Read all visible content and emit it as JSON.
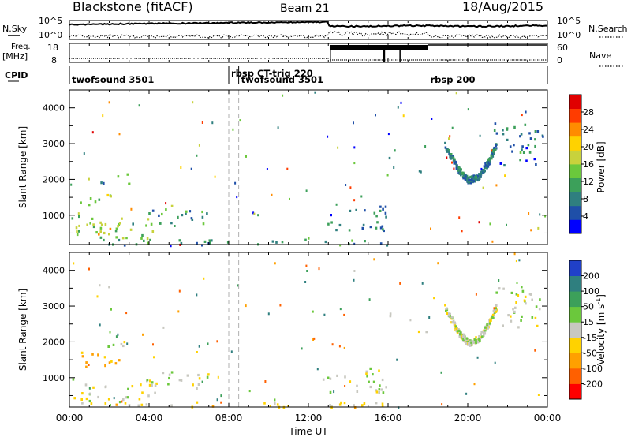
{
  "header": {
    "station": "Blackstone (fitACF)",
    "beam": "Beam 21",
    "date": "18/Aug/2015"
  },
  "noise_panel": {
    "left_label": "N.Sky",
    "right_label": "N.Search",
    "left_ticks": [
      "10^5",
      "10^0"
    ],
    "right_ticks": [
      "10^5",
      "10^0"
    ]
  },
  "freq_panel": {
    "left_label_1": "Freq.",
    "left_label_2": "[MHz]",
    "right_label": "Nave",
    "left_ticks": [
      "18",
      "8"
    ],
    "right_ticks": [
      "60",
      "0"
    ]
  },
  "cpid": {
    "label": "CPID",
    "segments": [
      {
        "name": "twofsound 3501",
        "start": 0,
        "end": 8.0
      },
      {
        "name": "rbsp CT-trig 220",
        "start": 8.0,
        "end": 8.5
      },
      {
        "name": "twofsound 3501",
        "start": 8.5,
        "end": 18.0
      },
      {
        "name": "rbsp 200",
        "start": 18.0,
        "end": 24.0
      }
    ]
  },
  "time_axis": {
    "label": "Time UT",
    "ticks": [
      "00:00",
      "04:00",
      "08:00",
      "12:00",
      "16:00",
      "20:00",
      "00:00"
    ]
  },
  "range_axis": {
    "label": "Slant Range [km]",
    "ticks": [
      "1000",
      "2000",
      "3000",
      "4000"
    ]
  },
  "power_colorbar": {
    "label": "Power [dB]",
    "ticks": [
      "28",
      "24",
      "20",
      "16",
      "12",
      "8",
      "4"
    ],
    "colors": [
      "#0000ff",
      "#1f4fa8",
      "#2f7f7f",
      "#3ca05a",
      "#6bc83c",
      "#c8d23c",
      "#ffd200",
      "#ff8c00",
      "#ff3c00",
      "#e00000"
    ]
  },
  "velocity_colorbar": {
    "label": "Velocity [m s^-1]",
    "ticks": [
      "200",
      "100",
      "50",
      "15",
      "-15",
      "-50",
      "-100",
      "-200"
    ],
    "colors": [
      "#2040c8",
      "#2f7f7f",
      "#3ca05a",
      "#6bc83c",
      "#c8c8c0",
      "#ffd200",
      "#ffa000",
      "#ff6000",
      "#ff0000"
    ]
  },
  "chart_data": [
    {
      "type": "heatmap",
      "title": "Power",
      "xlabel": "Time UT",
      "ylabel": "Slant Range [km]",
      "xlim": [
        0,
        24
      ],
      "ylim": [
        180,
        4500
      ],
      "clabel": "Power [dB]",
      "clim": [
        0,
        32
      ],
      "blobs": [
        {
          "t0": 0.1,
          "t1": 4.4,
          "r0": 300,
          "r1": 1000,
          "v": 14
        },
        {
          "t0": 0.3,
          "t1": 2.6,
          "r0": 500,
          "r1": 800,
          "v": 21
        },
        {
          "t0": 3.8,
          "t1": 7.0,
          "r0": 700,
          "r1": 1200,
          "v": 10
        },
        {
          "t0": 0.5,
          "t1": 1.5,
          "r0": 1250,
          "r1": 1700,
          "v": 13
        },
        {
          "t0": 1.8,
          "t1": 2.8,
          "r0": 1400,
          "r1": 1650,
          "v": 17
        },
        {
          "t0": 1.5,
          "t1": 3.0,
          "r0": 1900,
          "r1": 2200,
          "v": 11
        },
        {
          "t0": 4.8,
          "t1": 5.3,
          "r0": 1100,
          "r1": 1300,
          "v": 20
        },
        {
          "t0": 0.0,
          "t1": 16.0,
          "r0": 180,
          "r1": 350,
          "v": 8
        },
        {
          "t0": 12.7,
          "t1": 16.0,
          "r0": 600,
          "r1": 1300,
          "v": 8
        },
        {
          "t0": 17.2,
          "t1": 17.9,
          "r0": 2200,
          "r1": 2500,
          "v": 11
        },
        {
          "t0": 16.0,
          "t1": 16.6,
          "r0": 2600,
          "r1": 2900,
          "v": 8
        },
        {
          "t0": 21.3,
          "t1": 23.8,
          "r0": 2400,
          "r1": 3600,
          "v": 7
        },
        {
          "t0": 22.3,
          "t1": 22.8,
          "r0": 2500,
          "r1": 3000,
          "v": 13
        }
      ],
      "arc": {
        "t": [
          18.8,
          19.5,
          20.0,
          20.5,
          21.0,
          21.4
        ],
        "r": [
          3000,
          2300,
          2000,
          2100,
          2500,
          3000
        ],
        "v": 8
      }
    },
    {
      "type": "heatmap",
      "title": "Velocity",
      "xlabel": "Time UT",
      "ylabel": "Slant Range [km]",
      "xlim": [
        0,
        24
      ],
      "ylim": [
        180,
        4500
      ],
      "clabel": "Velocity [m s^-1]",
      "clim": [
        -200,
        200
      ],
      "blobs": [
        {
          "t0": 0.1,
          "t1": 4.4,
          "r0": 300,
          "r1": 1000,
          "v": 0
        },
        {
          "t0": 0.3,
          "t1": 2.0,
          "r0": 1300,
          "r1": 1750,
          "v": -60
        },
        {
          "t0": 1.8,
          "t1": 2.8,
          "r0": 1400,
          "r1": 1650,
          "v": -45
        },
        {
          "t0": 1.5,
          "t1": 3.0,
          "r0": 1900,
          "r1": 2200,
          "v": 0
        },
        {
          "t0": 4.0,
          "t1": 7.0,
          "r0": 700,
          "r1": 1200,
          "v": -2
        },
        {
          "t0": 4.8,
          "t1": 5.3,
          "r0": 1150,
          "r1": 1350,
          "v": 40
        },
        {
          "t0": 0.0,
          "t1": 16.0,
          "r0": 180,
          "r1": 350,
          "v": -30
        },
        {
          "t0": 12.7,
          "t1": 16.0,
          "r0": 600,
          "r1": 1300,
          "v": 0
        },
        {
          "t0": 17.2,
          "t1": 17.9,
          "r0": 2200,
          "r1": 2500,
          "v": 0
        },
        {
          "t0": 16.0,
          "t1": 16.6,
          "r0": 2600,
          "r1": 2900,
          "v": 0
        },
        {
          "t0": 21.3,
          "t1": 23.8,
          "r0": 2400,
          "r1": 3600,
          "v": 5
        }
      ],
      "arc": {
        "t": [
          18.8,
          19.5,
          20.0,
          20.5,
          21.0,
          21.4
        ],
        "r": [
          3000,
          2300,
          2000,
          2100,
          2500,
          3000
        ],
        "v": 0
      }
    }
  ]
}
